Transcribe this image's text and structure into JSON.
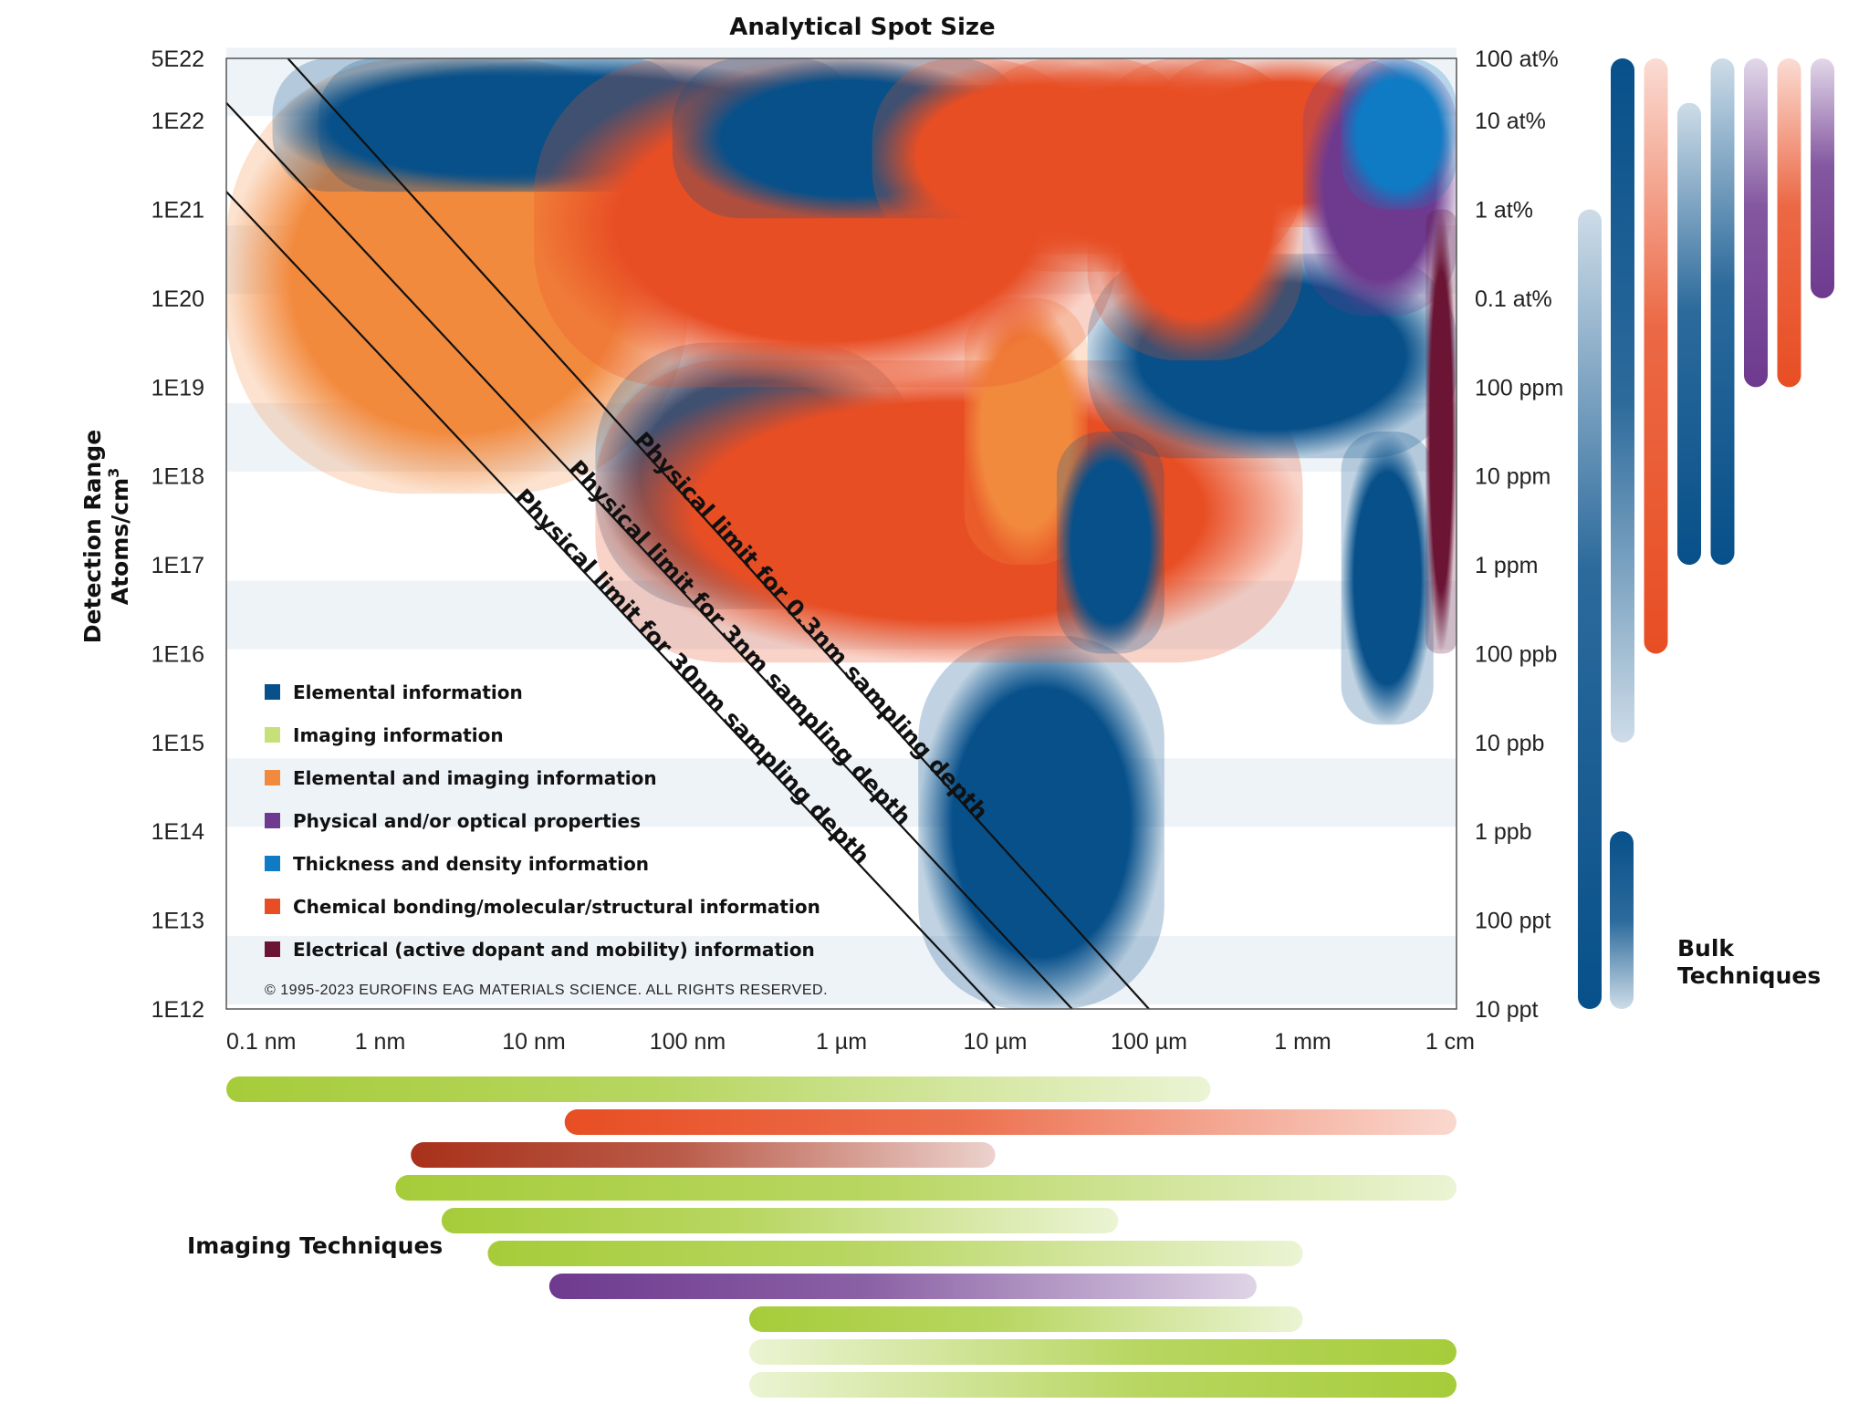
{
  "chart_data": {
    "type": "area",
    "title": "Analytical Spot Size",
    "ylabel_line1": "Detection Range",
    "ylabel_line2": "Atoms/cm",
    "ylabel_sup": "3",
    "x_log_range": [
      -10,
      -2
    ],
    "y_log_range": [
      12,
      22.7
    ],
    "x_ticks": [
      {
        "label": "0.1 nm",
        "log": -10
      },
      {
        "label": "1 nm",
        "log": -9
      },
      {
        "label": "10 nm",
        "log": -8
      },
      {
        "label": "100 nm",
        "log": -7
      },
      {
        "label": "1 µm",
        "log": -6
      },
      {
        "label": "10 µm",
        "log": -5
      },
      {
        "label": "100 µm",
        "log": -4
      },
      {
        "label": "1 mm",
        "log": -3
      },
      {
        "label": "1 cm",
        "log": -2
      }
    ],
    "y_ticks_left": [
      {
        "label": "5E22",
        "log": 22.7
      },
      {
        "label": "1E22",
        "log": 22
      },
      {
        "label": "1E21",
        "log": 21
      },
      {
        "label": "1E20",
        "log": 20
      },
      {
        "label": "1E19",
        "log": 19
      },
      {
        "label": "1E18",
        "log": 18
      },
      {
        "label": "1E17",
        "log": 17
      },
      {
        "label": "1E16",
        "log": 16
      },
      {
        "label": "1E15",
        "log": 15
      },
      {
        "label": "1E14",
        "log": 14
      },
      {
        "label": "1E13",
        "log": 13
      },
      {
        "label": "1E12",
        "log": 12
      }
    ],
    "y_ticks_right": [
      {
        "label": "100 at%",
        "log": 22.7
      },
      {
        "label": "10 at%",
        "log": 22
      },
      {
        "label": "1 at%",
        "log": 21
      },
      {
        "label": "0.1 at%",
        "log": 20
      },
      {
        "label": "100 ppm",
        "log": 19
      },
      {
        "label": "10 ppm",
        "log": 18
      },
      {
        "label": "1 ppm",
        "log": 17
      },
      {
        "label": "100 ppb",
        "log": 16
      },
      {
        "label": "10 ppb",
        "log": 15
      },
      {
        "label": "1 ppb",
        "log": 14
      },
      {
        "label": "100 ppt",
        "log": 13
      },
      {
        "label": "10 ppt",
        "log": 12
      }
    ],
    "legend": [
      {
        "label": "Elemental information",
        "color": "#07508A"
      },
      {
        "label": "Imaging information",
        "color": "#C8E07A"
      },
      {
        "label": "Elemental and imaging information",
        "color": "#F28A3E"
      },
      {
        "label": "Physical and/or optical properties",
        "color": "#6E3A8F"
      },
      {
        "label": "Thickness and density information",
        "color": "#0E7BC4"
      },
      {
        "label": "Chemical bonding/molecular/structural information",
        "color": "#E84E24"
      },
      {
        "label": "Electrical (active dopant and mobility) information",
        "color": "#6B1434"
      }
    ],
    "copyright": "© 1995-2023 EUROFINS EAG MATERIALS SCIENCE. ALL RIGHTS RESERVED.",
    "limit_lines": [
      {
        "label": "Physical limit for 0.3nm sampling depth",
        "start": [
          -9.6,
          22.7
        ],
        "end": [
          -4.0,
          12
        ]
      },
      {
        "label": "Physical limit for 3nm sampling depth",
        "start": [
          -10,
          22.2
        ],
        "end": [
          -4.5,
          12
        ]
      },
      {
        "label": "Physical limit for 30nm sampling depth",
        "start": [
          -10,
          21.2
        ],
        "end": [
          -5.0,
          12
        ]
      }
    ],
    "regions": [
      {
        "type": "Elemental and imaging information",
        "x": [
          -10.0,
          -7.0
        ],
        "y": [
          17.8,
          22.7
        ],
        "color": "#F28A3E"
      },
      {
        "type": "Elemental information",
        "x": [
          -9.7,
          -7.0
        ],
        "y": [
          21.2,
          22.7
        ],
        "color": "#07508A"
      },
      {
        "type": "Elemental information",
        "x": [
          -9.4,
          -5.9
        ],
        "y": [
          21.2,
          22.7
        ],
        "color": "#07508A"
      },
      {
        "type": "Elemental information",
        "x": [
          -7.6,
          -5.5
        ],
        "y": [
          16.5,
          19.5
        ],
        "color": "#07508A"
      },
      {
        "type": "Elemental information",
        "x": [
          -5.5,
          -3.9
        ],
        "y": [
          12,
          16.2
        ],
        "color": "#07508A"
      },
      {
        "type": "Chemical bonding/molecular/structural information",
        "x": [
          -7.6,
          -3.0
        ],
        "y": [
          15.9,
          19.3
        ],
        "color": "#E84E24"
      },
      {
        "type": "Elemental and imaging information",
        "x": [
          -5.2,
          -4.4
        ],
        "y": [
          17.0,
          20.0
        ],
        "color": "#F28A3E"
      },
      {
        "type": "Elemental information",
        "x": [
          -4.6,
          -3.9
        ],
        "y": [
          16.0,
          18.5
        ],
        "color": "#07508A"
      },
      {
        "type": "Chemical bonding/molecular/structural information",
        "x": [
          -8.0,
          -4.2
        ],
        "y": [
          19.0,
          22.7
        ],
        "color": "#E84E24"
      },
      {
        "type": "Elemental information",
        "x": [
          -7.1,
          -4.8
        ],
        "y": [
          20.9,
          22.7
        ],
        "color": "#07508A"
      },
      {
        "type": "Elemental information",
        "x": [
          -5.9,
          -4.6
        ],
        "y": [
          21.4,
          22.4
        ],
        "color": "#07508A"
      },
      {
        "type": "Chemical bonding/molecular/structural information",
        "x": [
          -5.8,
          -3.7
        ],
        "y": [
          20.5,
          22.7
        ],
        "color": "#E84E24"
      },
      {
        "type": "Chemical bonding/molecular/structural information",
        "x": [
          -5.2,
          -3.0
        ],
        "y": [
          20.3,
          22.7
        ],
        "color": "#E84E24"
      },
      {
        "type": "Elemental information",
        "x": [
          -4.4,
          -2.0
        ],
        "y": [
          18.2,
          20.5
        ],
        "color": "#07508A"
      },
      {
        "type": "Chemical bonding/molecular/structural information",
        "x": [
          -4.4,
          -3.0
        ],
        "y": [
          19.3,
          22.7
        ],
        "color": "#E84E24"
      },
      {
        "type": "Chemical bonding/molecular/structural information",
        "x": [
          -4.0,
          -2.2
        ],
        "y": [
          20.8,
          22.7
        ],
        "color": "#E84E24"
      },
      {
        "type": "Physical and/or optical properties",
        "x": [
          -3.0,
          -2.0
        ],
        "y": [
          19.8,
          22.7
        ],
        "color": "#6E3A8F"
      },
      {
        "type": "Thickness and density information",
        "x": [
          -2.75,
          -2.0
        ],
        "y": [
          21.0,
          22.7
        ],
        "color": "#0E7BC4"
      },
      {
        "type": "Elemental information",
        "x": [
          -2.75,
          -2.15
        ],
        "y": [
          15.2,
          18.5
        ],
        "color": "#07508A"
      },
      {
        "type": "Electrical (active dopant and mobility) information",
        "x": [
          -2.2,
          -2.0
        ],
        "y": [
          16.0,
          21.0
        ],
        "color": "#6B1434"
      }
    ],
    "bulk_label_line1": "Bulk",
    "bulk_label_line2": "Techniques",
    "bulk_bars": [
      {
        "top": 21.0,
        "bottom": 12.0,
        "color": "#07508A",
        "fade": "up"
      },
      {
        "top": 22.7,
        "bottom": 15.0,
        "color": "#07508A",
        "fade": "down"
      },
      {
        "top": 22.7,
        "bottom": 16.0,
        "color": "#E84E24",
        "fade": "up"
      },
      {
        "top": 22.2,
        "bottom": 17.0,
        "color": "#07508A",
        "fade": "up"
      },
      {
        "top": 22.7,
        "bottom": 17.0,
        "color": "#07508A",
        "fade": "up"
      },
      {
        "top": 22.7,
        "bottom": 19.0,
        "color": "#6E3A8F",
        "fade": "up"
      },
      {
        "top": 22.7,
        "bottom": 19.0,
        "color": "#E84E24",
        "fade": "up"
      },
      {
        "top": 22.7,
        "bottom": 20.0,
        "color": "#6E3A8F",
        "fade": "up"
      },
      {
        "top": 14.0,
        "bottom": 12.0,
        "color": "#07508A",
        "fade": "down"
      }
    ],
    "imaging_label": "Imaging Techniques",
    "imaging_bars": [
      {
        "from": -10.0,
        "to": -3.6,
        "color": "#A6CC3A",
        "fade": "right"
      },
      {
        "from": -7.8,
        "to": -2.0,
        "color": "#E84E24",
        "fade": "right"
      },
      {
        "from": -8.8,
        "to": -5.0,
        "color": "#A8311A",
        "fade": "right"
      },
      {
        "from": -8.9,
        "to": -2.0,
        "color": "#A6CC3A",
        "fade": "right"
      },
      {
        "from": -8.6,
        "to": -4.2,
        "color": "#A6CC3A",
        "fade": "right"
      },
      {
        "from": -8.3,
        "to": -3.0,
        "color": "#A6CC3A",
        "fade": "right"
      },
      {
        "from": -7.9,
        "to": -3.3,
        "color": "#6E3A8F",
        "fade": "right"
      },
      {
        "from": -6.6,
        "to": -3.0,
        "color": "#A6CC3A",
        "fade": "right"
      },
      {
        "from": -6.6,
        "to": -2.0,
        "color": "#A6CC3A",
        "fade": "left"
      },
      {
        "from": -6.6,
        "to": -2.0,
        "color": "#A6CC3A",
        "fade": "left"
      }
    ]
  }
}
